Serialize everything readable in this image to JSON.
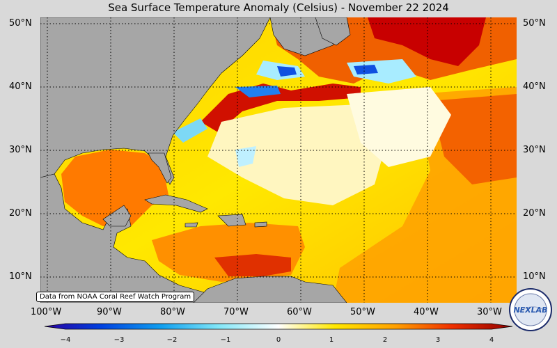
{
  "title": "Sea Surface Temperature Anomaly (Celsius) - November 22 2024",
  "lat_labels": [
    "50°N",
    "40°N",
    "30°N",
    "20°N",
    "10°N"
  ],
  "lon_labels": [
    "100°W",
    "90°W",
    "80°W",
    "70°W",
    "60°W",
    "50°W",
    "40°W",
    "30°W"
  ],
  "colorbar_ticks": [
    "−4",
    "−3",
    "−2",
    "−1",
    "0",
    "1",
    "2",
    "3",
    "4"
  ],
  "credit": "Data from NOAA Coral Reef Watch Program",
  "logo_text": "NEXLAB",
  "colors": {
    "land": "#a6a6a6",
    "ocean_warm": "#ffe100",
    "ocean_hot": "#e02000",
    "ocean_cool": "#9fe6f5",
    "ocean_cold": "#0040e0"
  }
}
